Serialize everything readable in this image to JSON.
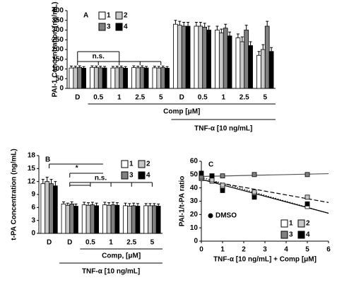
{
  "chart_data": [
    {
      "type": "bar",
      "panel": "A",
      "ylabel": "PAI-1 Concentration (ng/mL)",
      "categories": [
        "D",
        "0.5",
        "1",
        "2.5",
        "5",
        "D",
        "0.5",
        "1",
        "2.5",
        "5"
      ],
      "ylim": [
        0,
        400
      ],
      "yticks": [
        0,
        50,
        100,
        150,
        200,
        250,
        300,
        350,
        400
      ],
      "series": [
        {
          "name": "1",
          "color": "#ffffff",
          "values": [
            105,
            108,
            105,
            107,
            106,
            330,
            320,
            300,
            260,
            170
          ],
          "errors": [
            10,
            8,
            8,
            9,
            8,
            20,
            20,
            20,
            20,
            20
          ]
        },
        {
          "name": "2",
          "color": "#c8c8c8",
          "values": [
            106,
            107,
            106,
            106,
            105,
            325,
            320,
            285,
            240,
            200
          ],
          "errors": [
            8,
            8,
            8,
            8,
            8,
            20,
            20,
            20,
            25,
            25
          ]
        },
        {
          "name": "3",
          "color": "#808080",
          "values": [
            108,
            106,
            107,
            108,
            107,
            320,
            315,
            310,
            300,
            320
          ],
          "errors": [
            8,
            8,
            8,
            8,
            8,
            20,
            20,
            20,
            25,
            25
          ]
        },
        {
          "name": "4",
          "color": "#000000",
          "values": [
            104,
            105,
            104,
            105,
            104,
            320,
            300,
            270,
            220,
            190
          ],
          "errors": [
            8,
            8,
            8,
            8,
            8,
            20,
            20,
            20,
            20,
            20
          ]
        }
      ],
      "annotations": [
        "n.s."
      ],
      "comp_label": "Comp [μM]",
      "tnf_label": "TNF-α [10 ng/mL]"
    },
    {
      "type": "bar",
      "panel": "B",
      "ylabel": "t-PA Concentration (ng/mL)",
      "categories": [
        "D",
        "D",
        "0.5",
        "1",
        "2.5",
        "5"
      ],
      "ylim": [
        0,
        18
      ],
      "yticks": [
        0,
        3,
        6,
        9,
        12,
        15,
        18
      ],
      "series": [
        {
          "name": "1",
          "color": "#ffffff",
          "values": [
            11.5,
            6.8,
            6.6,
            6.6,
            6.4,
            6.4
          ],
          "errors": [
            1.0,
            0.5,
            0.6,
            0.6,
            0.6,
            0.5
          ]
        },
        {
          "name": "2",
          "color": "#c8c8c8",
          "values": [
            12.0,
            6.5,
            6.5,
            6.5,
            6.3,
            6.4
          ],
          "errors": [
            1.0,
            0.5,
            0.6,
            0.6,
            0.6,
            0.5
          ]
        },
        {
          "name": "3",
          "color": "#808080",
          "values": [
            11.5,
            6.8,
            6.6,
            6.6,
            6.4,
            6.4
          ],
          "errors": [
            1.0,
            0.5,
            0.6,
            0.6,
            0.6,
            0.5
          ]
        },
        {
          "name": "4",
          "color": "#000000",
          "values": [
            11.0,
            6.3,
            6.4,
            6.5,
            6.3,
            6.3
          ],
          "errors": [
            1.0,
            0.5,
            0.6,
            0.6,
            0.6,
            0.5
          ]
        }
      ],
      "annotations": [
        "*",
        "n.s."
      ],
      "comp_label": "Comp, [μM]",
      "tnf_label": "TNF-α [10 ng/mL]"
    },
    {
      "type": "scatter",
      "panel": "C",
      "ylabel": "PAI-1/t-PA ratio",
      "xlabel": "TNF-α [10 ng/mL] + Comp [μM]",
      "x": [
        0,
        0.5,
        1,
        2.5,
        5
      ],
      "xlim": [
        0,
        6
      ],
      "xticks": [
        0,
        1,
        2,
        3,
        4,
        5,
        6
      ],
      "ylim": [
        0,
        60
      ],
      "yticks": [
        0,
        10,
        20,
        30,
        40,
        50,
        60
      ],
      "series": [
        {
          "name": "1",
          "color": "#ffffff",
          "dash": "solid",
          "values": [
            48,
            45,
            40,
            35,
            26
          ]
        },
        {
          "name": "2",
          "color": "#c8c8c8",
          "dash": "dashed",
          "values": [
            47,
            46,
            42,
            37,
            33
          ]
        },
        {
          "name": "3",
          "color": "#808080",
          "dash": "solid",
          "values": [
            48,
            49,
            49,
            50,
            50
          ]
        },
        {
          "name": "4",
          "color": "#000000",
          "dash": "dotted",
          "values": [
            51,
            49,
            38,
            33,
            28
          ]
        }
      ],
      "annotations": [
        "DMSO"
      ]
    }
  ]
}
